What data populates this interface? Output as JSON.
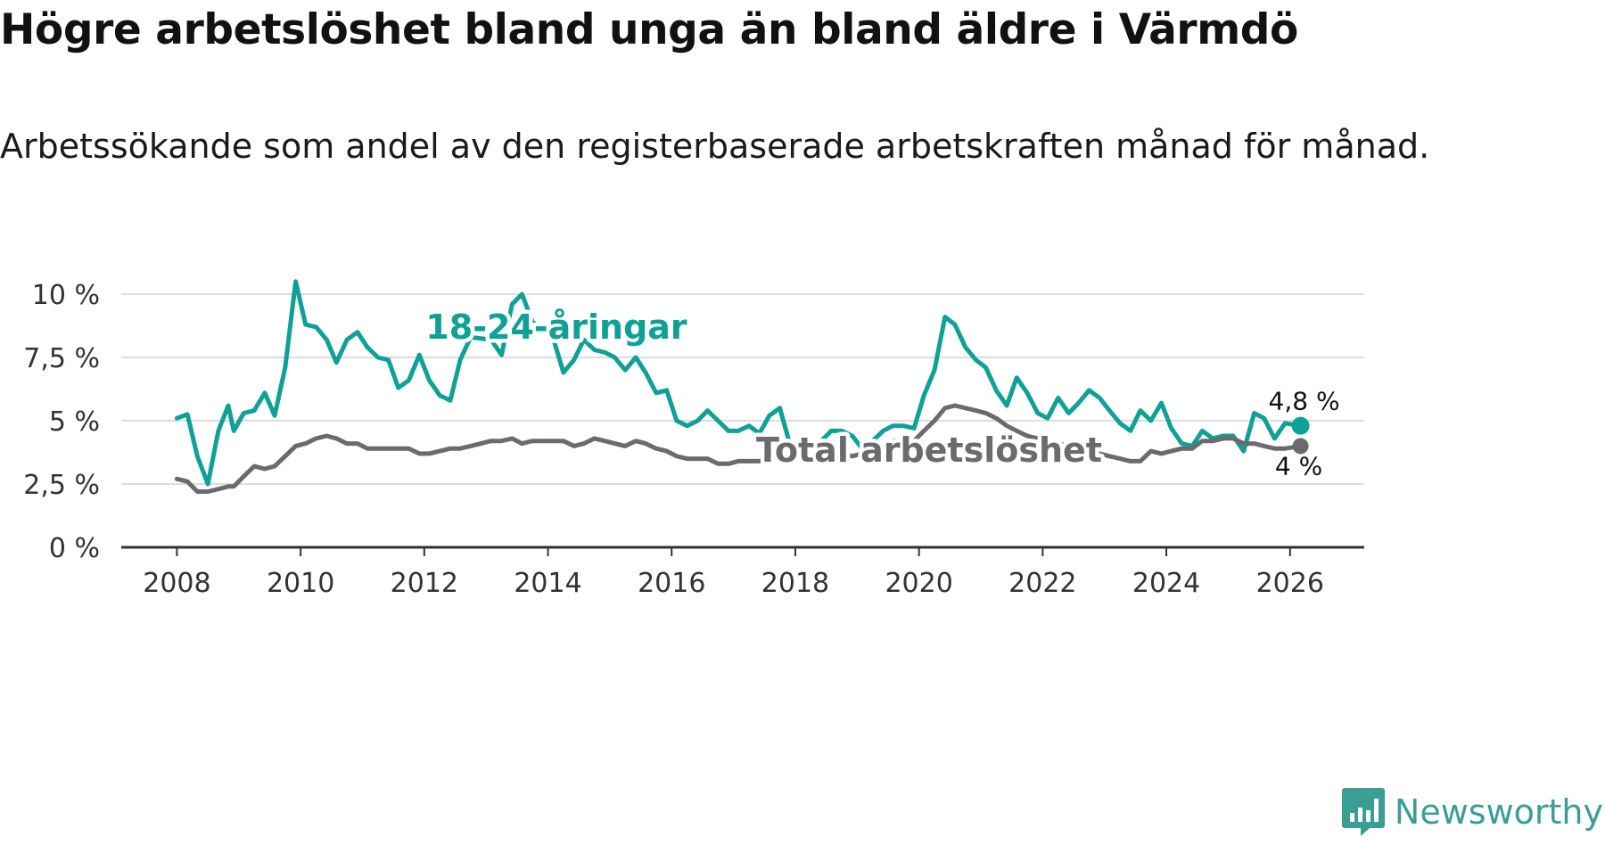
{
  "title": "Högre arbetslöshet bland unga än bland äldre i Värmdö",
  "subtitle": "Arbetssökande som andel av den registerbaserade arbetskraften månad för månad.",
  "brand": {
    "name": "Newsworthy",
    "color": "#3b9e95"
  },
  "colors": {
    "youth": "#0fa195",
    "total": "#6b6a6e",
    "grid": "#dddddd",
    "axis": "#333333"
  },
  "chart_data": {
    "type": "line",
    "title": "Högre arbetslöshet bland unga än bland äldre i Värmdö",
    "subtitle": "Arbetssökande som andel av den registerbaserade arbetskraften månad för månad.",
    "xlabel": "",
    "ylabel": "",
    "xlim": [
      2007.1,
      2027.2
    ],
    "ylim": [
      0,
      10
    ],
    "x_ticks": [
      2008,
      2010,
      2012,
      2014,
      2016,
      2018,
      2020,
      2022,
      2024,
      2026
    ],
    "x_tick_labels": [
      "2008",
      "2010",
      "2012",
      "2014",
      "2016",
      "2018",
      "2020",
      "2022",
      "2024",
      "2026"
    ],
    "y_ticks": [
      0,
      2.5,
      5,
      7.5,
      10
    ],
    "y_tick_labels": [
      "0 %",
      "2,5 %",
      "5 %",
      "7,5 %",
      "10 %"
    ],
    "grid": true,
    "series": [
      {
        "name": "18-24-åringar",
        "label": "18-24-åringar",
        "end_label": "4,8 %",
        "color": "#0fa195",
        "points": [
          [
            2008.0,
            5.1
          ],
          [
            2008.17,
            5.25
          ],
          [
            2008.33,
            3.6
          ],
          [
            2008.5,
            2.5
          ],
          [
            2008.67,
            4.6
          ],
          [
            2008.83,
            5.6
          ],
          [
            2008.92,
            4.6
          ],
          [
            2009.08,
            5.3
          ],
          [
            2009.25,
            5.4
          ],
          [
            2009.42,
            6.1
          ],
          [
            2009.58,
            5.2
          ],
          [
            2009.75,
            7.1
          ],
          [
            2009.92,
            10.5
          ],
          [
            2010.08,
            8.8
          ],
          [
            2010.25,
            8.7
          ],
          [
            2010.42,
            8.2
          ],
          [
            2010.58,
            7.3
          ],
          [
            2010.75,
            8.2
          ],
          [
            2010.92,
            8.5
          ],
          [
            2011.08,
            7.9
          ],
          [
            2011.25,
            7.5
          ],
          [
            2011.42,
            7.4
          ],
          [
            2011.58,
            6.3
          ],
          [
            2011.75,
            6.6
          ],
          [
            2011.92,
            7.6
          ],
          [
            2012.08,
            6.6
          ],
          [
            2012.25,
            6.0
          ],
          [
            2012.42,
            5.8
          ],
          [
            2012.58,
            7.4
          ],
          [
            2012.75,
            8.3
          ],
          [
            2013.08,
            8.2
          ],
          [
            2013.25,
            7.6
          ],
          [
            2013.42,
            9.6
          ],
          [
            2013.58,
            10.0
          ],
          [
            2013.75,
            8.9
          ],
          [
            2014.08,
            8.3
          ],
          [
            2014.25,
            6.9
          ],
          [
            2014.42,
            7.4
          ],
          [
            2014.58,
            8.2
          ],
          [
            2014.75,
            7.8
          ],
          [
            2014.92,
            7.7
          ],
          [
            2015.08,
            7.5
          ],
          [
            2015.25,
            7.0
          ],
          [
            2015.42,
            7.5
          ],
          [
            2015.58,
            6.9
          ],
          [
            2015.75,
            6.1
          ],
          [
            2015.92,
            6.2
          ],
          [
            2016.08,
            5.0
          ],
          [
            2016.25,
            4.8
          ],
          [
            2016.42,
            5.0
          ],
          [
            2016.58,
            5.4
          ],
          [
            2016.75,
            5.0
          ],
          [
            2016.92,
            4.6
          ],
          [
            2017.08,
            4.6
          ],
          [
            2017.25,
            4.8
          ],
          [
            2017.42,
            4.5
          ],
          [
            2017.58,
            5.2
          ],
          [
            2017.75,
            5.5
          ],
          [
            2017.92,
            4.0
          ],
          [
            2018.08,
            3.9
          ],
          [
            2018.25,
            3.4
          ],
          [
            2018.42,
            4.2
          ],
          [
            2018.58,
            4.6
          ],
          [
            2018.75,
            4.6
          ],
          [
            2018.92,
            4.4
          ],
          [
            2019.08,
            3.9
          ],
          [
            2019.25,
            4.2
          ],
          [
            2019.42,
            4.6
          ],
          [
            2019.58,
            4.8
          ],
          [
            2019.75,
            4.8
          ],
          [
            2019.92,
            4.7
          ],
          [
            2020.08,
            6.0
          ],
          [
            2020.25,
            7.0
          ],
          [
            2020.42,
            9.1
          ],
          [
            2020.58,
            8.8
          ],
          [
            2020.75,
            7.9
          ],
          [
            2020.92,
            7.4
          ],
          [
            2021.08,
            7.1
          ],
          [
            2021.25,
            6.2
          ],
          [
            2021.42,
            5.6
          ],
          [
            2021.58,
            6.7
          ],
          [
            2021.75,
            6.1
          ],
          [
            2021.92,
            5.3
          ],
          [
            2022.08,
            5.1
          ],
          [
            2022.25,
            5.9
          ],
          [
            2022.42,
            5.3
          ],
          [
            2022.58,
            5.7
          ],
          [
            2022.75,
            6.2
          ],
          [
            2022.92,
            5.9
          ],
          [
            2023.08,
            5.4
          ],
          [
            2023.25,
            4.9
          ],
          [
            2023.42,
            4.6
          ],
          [
            2023.58,
            5.4
          ],
          [
            2023.75,
            5.0
          ],
          [
            2023.92,
            5.7
          ],
          [
            2024.08,
            4.7
          ],
          [
            2024.25,
            4.1
          ],
          [
            2024.42,
            4.0
          ],
          [
            2024.58,
            4.6
          ],
          [
            2024.75,
            4.3
          ],
          [
            2024.92,
            4.4
          ],
          [
            2025.08,
            4.4
          ],
          [
            2025.25,
            3.8
          ],
          [
            2025.42,
            5.3
          ],
          [
            2025.58,
            5.1
          ],
          [
            2025.75,
            4.3
          ],
          [
            2025.92,
            4.9
          ],
          [
            2026.17,
            4.8
          ]
        ]
      },
      {
        "name": "Total arbetslöshet",
        "label": "Total arbetslöshet",
        "end_label": "4 %",
        "color": "#6b6a6e",
        "points": [
          [
            2008.0,
            2.7
          ],
          [
            2008.17,
            2.6
          ],
          [
            2008.33,
            2.2
          ],
          [
            2008.5,
            2.2
          ],
          [
            2008.67,
            2.3
          ],
          [
            2008.83,
            2.4
          ],
          [
            2008.92,
            2.4
          ],
          [
            2009.08,
            2.8
          ],
          [
            2009.25,
            3.2
          ],
          [
            2009.42,
            3.1
          ],
          [
            2009.58,
            3.2
          ],
          [
            2009.75,
            3.6
          ],
          [
            2009.92,
            4.0
          ],
          [
            2010.08,
            4.1
          ],
          [
            2010.25,
            4.3
          ],
          [
            2010.42,
            4.4
          ],
          [
            2010.58,
            4.3
          ],
          [
            2010.75,
            4.1
          ],
          [
            2010.92,
            4.1
          ],
          [
            2011.08,
            3.9
          ],
          [
            2011.25,
            3.9
          ],
          [
            2011.42,
            3.9
          ],
          [
            2011.58,
            3.9
          ],
          [
            2011.75,
            3.9
          ],
          [
            2011.92,
            3.7
          ],
          [
            2012.08,
            3.7
          ],
          [
            2012.25,
            3.8
          ],
          [
            2012.42,
            3.9
          ],
          [
            2012.58,
            3.9
          ],
          [
            2012.75,
            4.0
          ],
          [
            2013.08,
            4.2
          ],
          [
            2013.25,
            4.2
          ],
          [
            2013.42,
            4.3
          ],
          [
            2013.58,
            4.1
          ],
          [
            2013.75,
            4.2
          ],
          [
            2014.08,
            4.2
          ],
          [
            2014.25,
            4.2
          ],
          [
            2014.42,
            4.0
          ],
          [
            2014.58,
            4.1
          ],
          [
            2014.75,
            4.3
          ],
          [
            2014.92,
            4.2
          ],
          [
            2015.08,
            4.1
          ],
          [
            2015.25,
            4.0
          ],
          [
            2015.42,
            4.2
          ],
          [
            2015.58,
            4.1
          ],
          [
            2015.75,
            3.9
          ],
          [
            2015.92,
            3.8
          ],
          [
            2016.08,
            3.6
          ],
          [
            2016.25,
            3.5
          ],
          [
            2016.42,
            3.5
          ],
          [
            2016.58,
            3.5
          ],
          [
            2016.75,
            3.3
          ],
          [
            2016.92,
            3.3
          ],
          [
            2017.08,
            3.4
          ],
          [
            2017.25,
            3.4
          ],
          [
            2017.42,
            3.4
          ],
          [
            2017.58,
            3.5
          ],
          [
            2017.75,
            3.6
          ],
          [
            2017.92,
            3.6
          ],
          [
            2018.08,
            3.6
          ],
          [
            2018.25,
            3.6
          ],
          [
            2018.42,
            3.7
          ],
          [
            2018.58,
            3.8
          ],
          [
            2018.75,
            3.7
          ],
          [
            2018.92,
            3.6
          ],
          [
            2019.08,
            3.7
          ],
          [
            2019.25,
            3.8
          ],
          [
            2019.42,
            4.0
          ],
          [
            2019.58,
            4.2
          ],
          [
            2019.75,
            4.2
          ],
          [
            2019.92,
            4.2
          ],
          [
            2020.08,
            4.6
          ],
          [
            2020.25,
            5.0
          ],
          [
            2020.42,
            5.5
          ],
          [
            2020.58,
            5.6
          ],
          [
            2020.75,
            5.5
          ],
          [
            2020.92,
            5.4
          ],
          [
            2021.08,
            5.3
          ],
          [
            2021.25,
            5.1
          ],
          [
            2021.42,
            4.8
          ],
          [
            2021.58,
            4.6
          ],
          [
            2021.75,
            4.4
          ],
          [
            2021.92,
            4.3
          ],
          [
            2022.08,
            4.2
          ],
          [
            2022.25,
            4.1
          ],
          [
            2022.42,
            4.0
          ],
          [
            2022.58,
            3.9
          ],
          [
            2022.75,
            3.8
          ],
          [
            2022.92,
            3.7
          ],
          [
            2023.08,
            3.6
          ],
          [
            2023.25,
            3.5
          ],
          [
            2023.42,
            3.4
          ],
          [
            2023.58,
            3.4
          ],
          [
            2023.75,
            3.8
          ],
          [
            2023.92,
            3.7
          ],
          [
            2024.08,
            3.8
          ],
          [
            2024.25,
            3.9
          ],
          [
            2024.42,
            3.9
          ],
          [
            2024.58,
            4.2
          ],
          [
            2024.75,
            4.2
          ],
          [
            2024.92,
            4.3
          ],
          [
            2025.08,
            4.3
          ],
          [
            2025.25,
            4.1
          ],
          [
            2025.42,
            4.1
          ],
          [
            2025.58,
            4.0
          ],
          [
            2025.75,
            3.9
          ],
          [
            2025.92,
            3.9
          ],
          [
            2026.17,
            4.0
          ]
        ]
      }
    ]
  }
}
